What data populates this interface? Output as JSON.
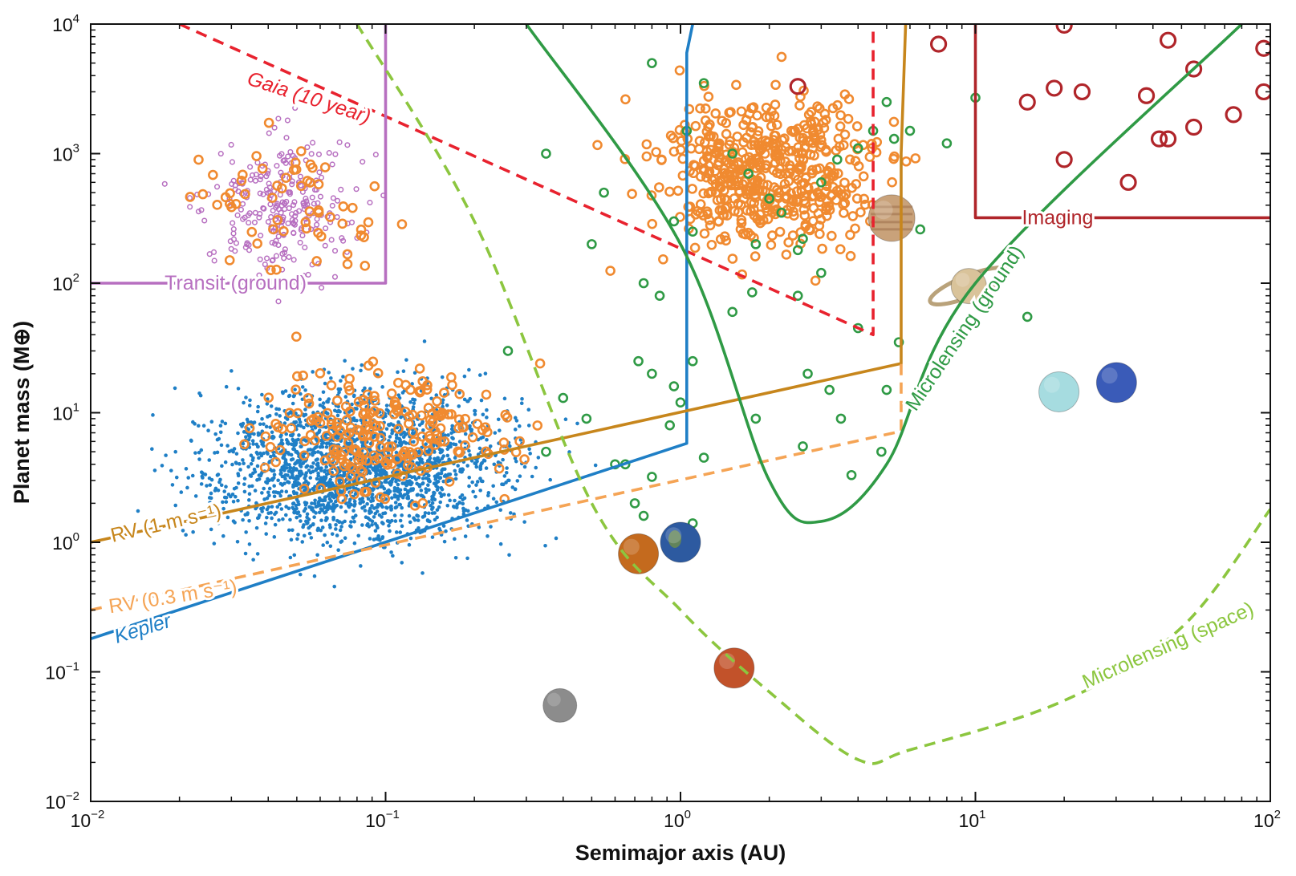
{
  "chart_data": {
    "type": "scatter",
    "title": "",
    "xlabel": "Semimajor axis (AU)",
    "ylabel": "Planet mass (M⊕)",
    "x_scale": "log",
    "y_scale": "log",
    "xlim": [
      0.01,
      100
    ],
    "ylim": [
      0.01,
      10000
    ],
    "grid": false,
    "x_ticks": [
      {
        "value": 0.01,
        "base": "10",
        "exp": "−2"
      },
      {
        "value": 0.1,
        "base": "10",
        "exp": "−1"
      },
      {
        "value": 1,
        "base": "10",
        "exp": "0"
      },
      {
        "value": 10,
        "base": "10",
        "exp": "1"
      },
      {
        "value": 100,
        "base": "10",
        "exp": "2"
      }
    ],
    "y_ticks": [
      {
        "value": 0.01,
        "base": "10",
        "exp": "−2"
      },
      {
        "value": 0.1,
        "base": "10",
        "exp": "−1"
      },
      {
        "value": 1,
        "base": "10",
        "exp": "0"
      },
      {
        "value": 10,
        "base": "10",
        "exp": "1"
      },
      {
        "value": 100,
        "base": "10",
        "exp": "2"
      },
      {
        "value": 1000,
        "base": "10",
        "exp": "3"
      },
      {
        "value": 10000,
        "base": "10",
        "exp": "4"
      }
    ],
    "curves": [
      {
        "label": "Gaia (10 year)",
        "color": "#e8222e",
        "style": "dashed",
        "points": [
          [
            0.02,
            10000
          ],
          [
            4.5,
            40
          ],
          [
            4.5,
            10000
          ]
        ]
      },
      {
        "label": "Transit (ground)",
        "color": "#b76fc0",
        "style": "solid",
        "points": [
          [
            0.01,
            100
          ],
          [
            0.1,
            100
          ],
          [
            0.1,
            10000
          ]
        ]
      },
      {
        "label": "Kepler",
        "color": "#1f7fc6",
        "style": "solid",
        "points": [
          [
            0.01,
            0.18
          ],
          [
            1.05,
            5.8
          ],
          [
            1.05,
            6000
          ],
          [
            1.1,
            10000
          ]
        ]
      },
      {
        "label": "RV (1 m s⁻¹)",
        "color": "#c7861c",
        "style": "solid",
        "points": [
          [
            0.01,
            1.0
          ],
          [
            5.6,
            24
          ],
          [
            5.6,
            1000
          ],
          [
            5.8,
            10000
          ]
        ]
      },
      {
        "label": "RV (0.3 m s⁻¹)",
        "color": "#f5a455",
        "style": "dashed",
        "points": [
          [
            0.01,
            0.3
          ],
          [
            5.6,
            7.2
          ],
          [
            5.6,
            24
          ]
        ]
      },
      {
        "label": "Microlensing (ground)",
        "color": "#2f9a45",
        "style": "solid",
        "points": [
          [
            0.3,
            10000
          ],
          [
            1,
            200
          ],
          [
            2,
            3
          ],
          [
            3,
            1.45
          ],
          [
            5,
            4
          ],
          [
            10,
            100
          ],
          [
            80,
            10000
          ]
        ]
      },
      {
        "label": "Microlensing (space)",
        "color": "#8cc63f",
        "style": "dashed",
        "points": [
          [
            0.08,
            10000
          ],
          [
            0.2,
            300
          ],
          [
            0.5,
            2
          ],
          [
            1.0,
            0.3
          ],
          [
            2,
            0.07
          ],
          [
            4,
            0.021
          ],
          [
            6,
            0.025
          ],
          [
            20,
            0.06
          ],
          [
            50,
            0.22
          ],
          [
            100,
            1.8
          ]
        ]
      },
      {
        "label": "Imaging",
        "color": "#b0252a",
        "style": "solid",
        "points": [
          [
            10,
            10000
          ],
          [
            10,
            320
          ],
          [
            100,
            320
          ]
        ]
      }
    ],
    "series": [
      {
        "name": "Kepler",
        "marker": "dot",
        "color": "#1f7fc6",
        "cluster": {
          "x_center": 0.08,
          "x_spread_dex": 0.42,
          "y_center": 4.0,
          "y_spread_dex": 0.5,
          "approx_count": 2200
        }
      },
      {
        "name": "RV",
        "marker": "ring",
        "color": "#f08a30",
        "clusters": [
          {
            "x_center": 0.1,
            "x_spread_dex": 0.32,
            "y_center": 7,
            "y_spread_dex": 0.38,
            "approx_count": 230
          },
          {
            "x_center": 2.0,
            "x_spread_dex": 0.3,
            "y_center": 700,
            "y_spread_dex": 0.45,
            "approx_count": 520
          },
          {
            "x_center": 0.05,
            "x_spread_dex": 0.3,
            "y_center": 400,
            "y_spread_dex": 0.45,
            "approx_count": 60
          }
        ]
      },
      {
        "name": "Transit (ground)",
        "marker": "small-ring",
        "color": "#b76fc0",
        "cluster": {
          "x_center": 0.045,
          "x_spread_dex": 0.2,
          "y_center": 400,
          "y_spread_dex": 0.42,
          "approx_count": 260
        }
      },
      {
        "name": "Microlensing",
        "marker": "ring",
        "color": "#2f9a45",
        "points": [
          [
            0.8,
            5000
          ],
          [
            1.05,
            1500
          ],
          [
            1.2,
            3500
          ],
          [
            0.35,
            1000
          ],
          [
            0.55,
            500
          ],
          [
            0.5,
            200
          ],
          [
            0.75,
            100
          ],
          [
            0.85,
            80
          ],
          [
            0.95,
            300
          ],
          [
            1.1,
            250
          ],
          [
            1.5,
            1000
          ],
          [
            1.7,
            700
          ],
          [
            1.8,
            200
          ],
          [
            1.75,
            85
          ],
          [
            2.0,
            450
          ],
          [
            2.2,
            350
          ],
          [
            2.5,
            180
          ],
          [
            2.6,
            220
          ],
          [
            3.0,
            600
          ],
          [
            3.4,
            900
          ],
          [
            4.0,
            1100
          ],
          [
            4.5,
            1500
          ],
          [
            5.0,
            2500
          ],
          [
            5.3,
            1300
          ],
          [
            6.0,
            1500
          ],
          [
            8.0,
            1200
          ],
          [
            10.0,
            2700
          ],
          [
            6.5,
            260
          ],
          [
            3.0,
            120
          ],
          [
            2.5,
            80
          ],
          [
            1.5,
            60
          ],
          [
            1.1,
            25
          ],
          [
            0.95,
            16
          ],
          [
            0.92,
            8
          ],
          [
            0.6,
            4
          ],
          [
            0.7,
            2
          ],
          [
            0.75,
            1.6
          ],
          [
            1.1,
            1.4
          ],
          [
            0.35,
            5
          ],
          [
            0.26,
            30
          ],
          [
            0.48,
            9
          ],
          [
            0.72,
            25
          ],
          [
            0.8,
            20
          ],
          [
            2.7,
            20
          ],
          [
            3.2,
            15
          ],
          [
            3.5,
            9
          ],
          [
            2.6,
            5.5
          ],
          [
            1.8,
            9
          ],
          [
            3.8,
            3.3
          ],
          [
            4.8,
            5
          ],
          [
            15,
            55
          ],
          [
            4.0,
            45
          ],
          [
            0.4,
            13
          ],
          [
            5.0,
            15
          ],
          [
            5.5,
            35
          ],
          [
            1.0,
            12
          ],
          [
            1.2,
            4.5
          ],
          [
            0.8,
            3.2
          ],
          [
            0.65,
            4
          ]
        ]
      },
      {
        "name": "Imaging",
        "marker": "large-ring",
        "color": "#b0252a",
        "points": [
          [
            7.5,
            7000
          ],
          [
            20,
            9800
          ],
          [
            45,
            7500
          ],
          [
            95,
            6500
          ],
          [
            18.5,
            3200
          ],
          [
            15,
            2500
          ],
          [
            23,
            3000
          ],
          [
            38,
            2800
          ],
          [
            55,
            4500
          ],
          [
            75,
            2000
          ],
          [
            95,
            3000
          ],
          [
            55,
            1600
          ],
          [
            45,
            1300
          ],
          [
            20,
            900
          ],
          [
            33,
            600
          ],
          [
            2.5,
            3300
          ],
          [
            42,
            1300
          ]
        ]
      }
    ],
    "solar_system": [
      {
        "name": "Mercury",
        "x": 0.39,
        "y": 0.055,
        "color": "#8c8c8c"
      },
      {
        "name": "Venus",
        "x": 0.72,
        "y": 0.815,
        "color": "#c46a1e"
      },
      {
        "name": "Earth",
        "x": 1.0,
        "y": 1.0,
        "color": "#2d5aa0"
      },
      {
        "name": "Mars",
        "x": 1.52,
        "y": 0.107,
        "color": "#c2522a"
      },
      {
        "name": "Jupiter",
        "x": 5.2,
        "y": 318,
        "color": "#c9a27a"
      },
      {
        "name": "Saturn",
        "x": 9.5,
        "y": 95,
        "color": "#d9c39a"
      },
      {
        "name": "Uranus",
        "x": 19.2,
        "y": 14.5,
        "color": "#a6dce0"
      },
      {
        "name": "Neptune",
        "x": 30.1,
        "y": 17.1,
        "color": "#3a5bb8"
      }
    ]
  }
}
